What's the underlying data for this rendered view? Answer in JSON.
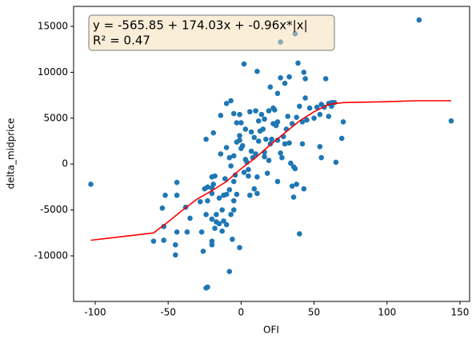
{
  "chart_data": {
    "type": "scatter",
    "xlabel": "OFI",
    "ylabel": "delta_midprice",
    "annotation": [
      "y = -565.85 + 174.03x + -0.96x*|x|",
      "R² = 0.47"
    ],
    "xlim": [
      -114.8,
      156.6
    ],
    "ylim": [
      -14965,
      17178
    ],
    "xticks": [
      -100,
      -50,
      0,
      50,
      100,
      150
    ],
    "yticks": [
      -10000,
      -5000,
      0,
      5000,
      10000,
      15000
    ],
    "points": {
      "color": "#1f77b4",
      "x": [
        122,
        144,
        -103,
        27,
        37,
        -60,
        -53,
        -53,
        -54,
        -52,
        -44,
        -44,
        -44,
        -45,
        -45,
        -37,
        -35,
        -38,
        -27,
        -26,
        -24,
        -23,
        -20,
        -20,
        -24,
        -23,
        -20,
        -23,
        -20,
        -25,
        -20,
        -18,
        -19,
        -17,
        -17,
        -15,
        -12,
        -13,
        -15,
        -12,
        -10,
        -11,
        -8,
        -5,
        -5,
        -7,
        -5,
        -3,
        -6,
        -1,
        -8,
        -20,
        -18,
        -13,
        -10,
        -24,
        -19,
        -14,
        -10,
        -8,
        -7,
        -5,
        -3,
        -1,
        -1,
        1,
        0,
        -4,
        2,
        3,
        4,
        5,
        5,
        7,
        8,
        9,
        10,
        11,
        6,
        9,
        11,
        12,
        13,
        15,
        16,
        14,
        17,
        16,
        16,
        18,
        19,
        20,
        21,
        22,
        23,
        24,
        25,
        25,
        25,
        27,
        28,
        29,
        30,
        31,
        32,
        33,
        34,
        35,
        36,
        37,
        38,
        36,
        38,
        40,
        42,
        42,
        43,
        45,
        47,
        50,
        52,
        54,
        55,
        57,
        60,
        60,
        62,
        64,
        65,
        69,
        70,
        40,
        35,
        -10,
        -7,
        -5,
        -1,
        0,
        2,
        6,
        10,
        11,
        19,
        20,
        22,
        25,
        27,
        30,
        33,
        39,
        43,
        44,
        54,
        58,
        44,
        55,
        62,
        7,
        12,
        3,
        -3,
        -14,
        -28
      ],
      "values": [
        15700,
        4700,
        -2200,
        13300,
        14200,
        -8400,
        -8300,
        -6800,
        -4800,
        -3400,
        -3400,
        -2000,
        -7400,
        -8800,
        -9900,
        -7400,
        -5900,
        -4700,
        -7400,
        -9500,
        -13500,
        -13400,
        -8400,
        -8800,
        -5500,
        -4000,
        -3200,
        -2500,
        -2600,
        -2700,
        -1400,
        -1300,
        -2200,
        -5500,
        -6300,
        -6500,
        -6200,
        -5000,
        -3700,
        -3400,
        -3300,
        -1600,
        -2800,
        -1900,
        -4000,
        -5500,
        -5000,
        -3300,
        -8200,
        -9100,
        -11700,
        -6000,
        -7000,
        -7300,
        -6600,
        2700,
        3400,
        1100,
        1800,
        700,
        -200,
        900,
        2400,
        2600,
        3100,
        2000,
        1700,
        -1200,
        -900,
        500,
        200,
        -600,
        -1300,
        1400,
        700,
        2900,
        1100,
        -1400,
        -3400,
        -2700,
        -3200,
        2500,
        3600,
        3800,
        4900,
        5400,
        2700,
        1300,
        800,
        -1000,
        400,
        2200,
        2700,
        4400,
        5900,
        4200,
        4600,
        2600,
        -1900,
        1200,
        700,
        3000,
        2200,
        3800,
        5200,
        2300,
        100,
        4400,
        -300,
        -500,
        -2200,
        -3600,
        5100,
        6300,
        4600,
        2200,
        -2700,
        4800,
        6100,
        5000,
        6200,
        1900,
        700,
        6200,
        5200,
        6600,
        6700,
        6700,
        200,
        2800,
        4600,
        -7600,
        -2400,
        6600,
        6900,
        5500,
        5400,
        4500,
        10900,
        5700,
        5800,
        10100,
        5800,
        8400,
        6100,
        7700,
        9400,
        8800,
        9500,
        11000,
        10000,
        9300,
        5400,
        9300,
        7200,
        6500,
        6300,
        3500,
        4700,
        3800,
        4500,
        5300,
        -4100
      ]
    },
    "fit": {
      "color": "#ff0000",
      "x": [
        -103,
        -60,
        -50,
        -40,
        -30,
        -20,
        -10,
        0,
        10,
        20,
        30,
        40,
        50,
        60,
        70,
        100,
        120,
        144
      ],
      "values": [
        -8300,
        -7500,
        -6300,
        -5000,
        -3800,
        -2900,
        -1900,
        -500,
        700,
        2100,
        3400,
        4700,
        5700,
        6500,
        6700,
        6800,
        6900,
        6900
      ]
    }
  }
}
